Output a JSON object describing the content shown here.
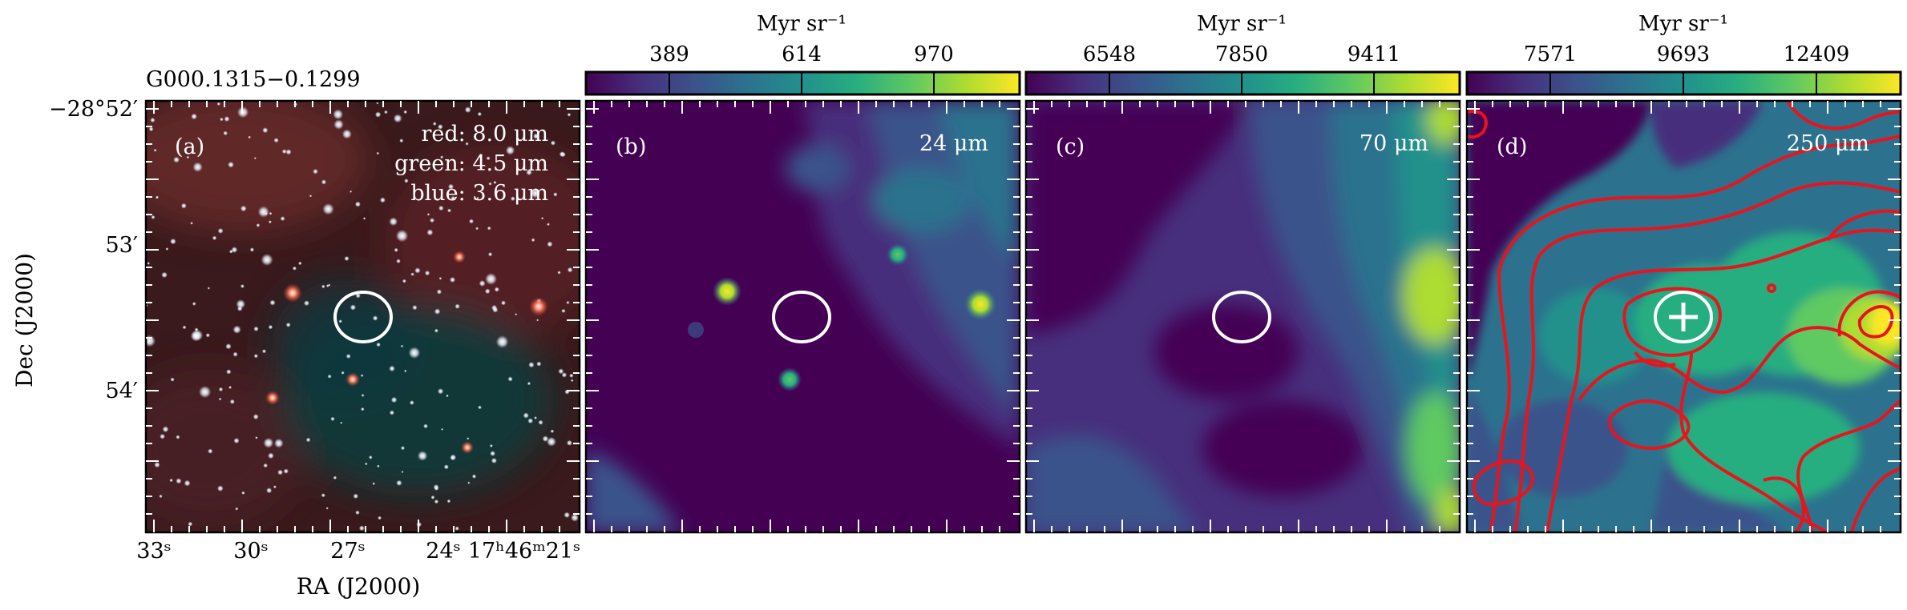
{
  "figure": {
    "source_name": "G000.1315−0.1299",
    "ylabel": "Dec (J2000)",
    "xlabel": "RA (J2000)",
    "dec_ticks": [
      "−28°52′",
      "53′",
      "54′"
    ],
    "ra_ticks": [
      "33ˢ",
      "30ˢ",
      "27ˢ",
      "24ˢ",
      "17ʰ46ᵐ21ˢ"
    ]
  },
  "panels": [
    {
      "id": "a",
      "label": "(a)",
      "legend": [
        "red: 8.0 μm",
        "green: 4.5 μm",
        "blue: 3.6 μm"
      ],
      "image": "Spitzer IRAC three-colour composite"
    },
    {
      "id": "b",
      "label": "(b)",
      "band": "24 μm",
      "colorbar": {
        "unit": "Myr sr⁻¹",
        "ticks": [
          "389",
          "614",
          "970"
        ],
        "colormap": "viridis"
      }
    },
    {
      "id": "c",
      "label": "(c)",
      "band": "70 μm",
      "colorbar": {
        "unit": "Myr sr⁻¹",
        "ticks": [
          "6548",
          "7850",
          "9411"
        ],
        "colormap": "viridis"
      }
    },
    {
      "id": "d",
      "label": "(d)",
      "band": "250 μm",
      "colorbar": {
        "unit": "Myr sr⁻¹",
        "ticks": [
          "7571",
          "9693",
          "12409"
        ],
        "colormap": "viridis"
      },
      "overlay": "red contours, ellipse with cross marker"
    }
  ],
  "colors": {
    "viridis": [
      "#440154",
      "#472f7d",
      "#3b528b",
      "#2c728e",
      "#21918c",
      "#28ae80",
      "#5ec962",
      "#addc30",
      "#fde725"
    ],
    "contour": "#e8141c",
    "ellipse": "#ffffff"
  }
}
